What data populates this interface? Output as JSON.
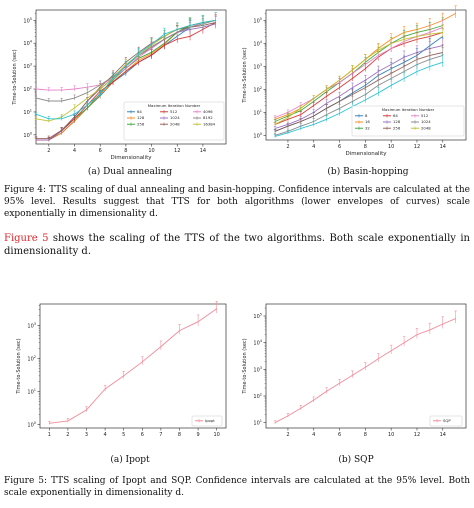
{
  "figure4": {
    "caption": "Figure 4:  TTS scaling of dual annealing and basin-hopping.  Confidence intervals are calculated at the 95% level.  Results suggest that TTS for both algorithms (lower envelopes of curves) scale exponentially in dimensionality d.",
    "panel_a_label": "(a) Dual annealing",
    "panel_b_label": "(b) Basin-hopping"
  },
  "body_text": {
    "ref": "Figure 5",
    "text": " shows the scaling of the TTS of the two algorithms.  Both scale exponentially in dimensionality d."
  },
  "figure5": {
    "caption": "Figure 5:  TTS scaling of Ipopt and SQP. Confidence intervals are calculated at the 95% level.  Both scale exponentially in dimensionality d.",
    "panel_a_label": "(a) Ipopt",
    "panel_b_label": "(b) SQP"
  },
  "chart_data": [
    {
      "id": "dual",
      "type": "line",
      "xlabel": "Dimensionality",
      "ylabel": "Time-to-Solution (sec)",
      "xticks": [
        2,
        4,
        6,
        8,
        10,
        12,
        14
      ],
      "yticks": [
        "10^0",
        "10^1",
        "10^2",
        "10^3",
        "10^4",
        "10^5"
      ],
      "xlim": [
        1,
        15.8
      ],
      "ylim_log10": [
        -0.4,
        5.45
      ],
      "legend": {
        "title": "Maximum Iteration Number",
        "position": "lower-right",
        "ncol": 3
      },
      "series": [
        {
          "name": "64",
          "color": "#1f77b4",
          "x": [
            1,
            2,
            3,
            4,
            5,
            6,
            7,
            8,
            9,
            10,
            11,
            12,
            13
          ],
          "y": [
            0.6,
            0.6,
            1.2,
            4,
            15,
            50,
            200,
            500,
            1500,
            3000,
            8000,
            20000,
            50000
          ]
        },
        {
          "name": "128",
          "color": "#ff7f0e",
          "x": [
            1,
            2,
            3,
            4,
            5,
            6,
            7,
            8,
            9,
            10,
            11,
            12,
            13
          ],
          "y": [
            0.6,
            0.6,
            1.2,
            4,
            15,
            55,
            210,
            600,
            1800,
            3500,
            9000,
            30000,
            60000
          ]
        },
        {
          "name": "256",
          "color": "#2ca02c",
          "x": [
            1,
            2,
            3,
            4,
            5,
            6,
            7,
            8,
            9,
            10,
            11,
            12,
            13
          ],
          "y": [
            0.6,
            0.6,
            1.5,
            5,
            15,
            65,
            250,
            800,
            2200,
            4000,
            10000,
            30000,
            60000
          ]
        },
        {
          "name": "512",
          "color": "#d62728",
          "x": [
            1,
            2,
            3,
            4,
            5,
            6,
            7,
            8,
            9,
            10,
            11,
            12,
            13,
            14,
            15
          ],
          "y": [
            0.6,
            0.6,
            1.5,
            5,
            20,
            80,
            200,
            600,
            1500,
            3000,
            8000,
            15000,
            20000,
            40000,
            80000
          ]
        },
        {
          "name": "1024",
          "color": "#9467bd",
          "x": [
            1,
            2,
            3,
            4,
            5,
            6,
            7,
            8,
            9,
            10,
            11,
            12,
            13,
            14,
            15
          ],
          "y": [
            0.6,
            0.6,
            1.5,
            6,
            30,
            100,
            300,
            1000,
            3000,
            6000,
            15000,
            30000,
            40000,
            50000,
            70000
          ]
        },
        {
          "name": "2048",
          "color": "#8c564b",
          "x": [
            1,
            2,
            3,
            4,
            5,
            6,
            7,
            8,
            9,
            10,
            11,
            12,
            13,
            14,
            15
          ],
          "y": [
            0.7,
            0.7,
            1.6,
            6,
            30,
            120,
            400,
            1500,
            4000,
            10000,
            20000,
            40000,
            50000,
            60000,
            80000
          ]
        },
        {
          "name": "4096",
          "color": "#e377c2",
          "x": [
            1,
            2,
            3,
            4,
            5,
            6,
            7,
            8,
            9,
            10,
            11,
            12,
            13,
            14,
            15
          ],
          "y": [
            100,
            90,
            90,
            100,
            120,
            150,
            300,
            800,
            2500,
            6000,
            15000,
            30000,
            50000,
            80000,
            100000
          ]
        },
        {
          "name": "8192",
          "color": "#7f7f7f",
          "x": [
            1,
            2,
            3,
            4,
            5,
            6,
            7,
            8,
            9,
            10,
            11,
            12,
            13,
            14,
            15
          ],
          "y": [
            40,
            30,
            30,
            40,
            70,
            150,
            350,
            1000,
            3000,
            7000,
            15000,
            30000,
            50000,
            70000,
            100000
          ]
        },
        {
          "name": "16384",
          "color": "#bcbd22",
          "x": [
            1,
            2,
            3,
            4,
            5,
            6,
            7,
            8,
            9,
            10,
            11,
            12,
            13,
            14,
            15
          ],
          "y": [
            5,
            4,
            6,
            15,
            40,
            100,
            300,
            1200,
            3000,
            8000,
            20000,
            40000,
            60000,
            80000,
            100000
          ]
        },
        {
          "name": "",
          "color": "#17becf",
          "x": [
            1,
            2,
            3,
            4,
            5,
            6,
            7,
            8,
            9,
            10,
            11,
            12,
            13,
            14,
            15
          ],
          "y": [
            8,
            5,
            5,
            8,
            20,
            60,
            300,
            1000,
            3500,
            9000,
            25000,
            40000,
            60000,
            80000,
            100000
          ]
        }
      ]
    },
    {
      "id": "basin",
      "type": "line",
      "xlabel": "Dimensionality",
      "ylabel": "Time-to-Solution (sec)",
      "xticks": [
        2,
        4,
        6,
        8,
        10,
        12,
        14
      ],
      "yticks": [
        "10^0",
        "10^1",
        "10^2",
        "10^3",
        "10^4",
        "10^5"
      ],
      "xlim": [
        0.3,
        15.8
      ],
      "ylim_log10": [
        -0.2,
        5.45
      ],
      "legend": {
        "title": "Maximum Iteration Number",
        "position": "lower-right",
        "ncol": 4
      },
      "series": [
        {
          "name": "8",
          "color": "#1f77b4",
          "x": [
            1,
            2,
            3,
            4,
            5,
            6,
            7,
            8,
            9,
            10,
            11,
            12,
            13,
            14
          ],
          "y": [
            1.5,
            2.5,
            4,
            7,
            15,
            30,
            70,
            150,
            400,
            800,
            1500,
            3000,
            8000,
            20000
          ]
        },
        {
          "name": "16",
          "color": "#ff7f0e",
          "x": [
            1,
            2,
            3,
            4,
            5,
            6,
            7,
            8,
            9,
            10,
            11,
            12,
            13,
            14,
            15
          ],
          "y": [
            5,
            8,
            15,
            40,
            100,
            250,
            700,
            2000,
            6000,
            15000,
            30000,
            40000,
            60000,
            100000,
            200000
          ]
        },
        {
          "name": "32",
          "color": "#2ca02c",
          "x": [
            1,
            2,
            3,
            4,
            5,
            6,
            7,
            8,
            9,
            10,
            11,
            12,
            13,
            14
          ],
          "y": [
            4,
            7,
            12,
            30,
            80,
            200,
            500,
            1500,
            4000,
            10000,
            20000,
            30000,
            40000,
            60000
          ]
        },
        {
          "name": "64",
          "color": "#d62728",
          "x": [
            1,
            2,
            3,
            4,
            5,
            6,
            7,
            8,
            9,
            10,
            11,
            12,
            13,
            14
          ],
          "y": [
            3,
            5,
            8,
            20,
            50,
            120,
            300,
            800,
            2500,
            6000,
            10000,
            15000,
            20000,
            30000
          ]
        },
        {
          "name": "128",
          "color": "#9467bd",
          "x": [
            1,
            2,
            3,
            4,
            5,
            6,
            7,
            8,
            9,
            10,
            11,
            12,
            13,
            14
          ],
          "y": [
            2,
            3,
            5,
            10,
            25,
            50,
            120,
            250,
            600,
            1200,
            2500,
            4000,
            6000,
            8000
          ]
        },
        {
          "name": "256",
          "color": "#8c564b",
          "x": [
            1,
            2,
            3,
            4,
            5,
            6,
            7,
            8,
            9,
            10,
            11,
            12,
            13,
            14
          ],
          "y": [
            1.5,
            2.5,
            4,
            7,
            15,
            30,
            60,
            120,
            250,
            500,
            1000,
            2000,
            3000,
            4000
          ]
        },
        {
          "name": "512",
          "color": "#e377c2",
          "x": [
            1,
            2,
            3,
            4,
            5,
            6,
            7,
            8,
            9,
            10,
            11,
            12,
            13,
            14
          ],
          "y": [
            6,
            10,
            20,
            40,
            100,
            200,
            500,
            1200,
            3000,
            6000,
            12000,
            20000,
            30000,
            50000
          ]
        },
        {
          "name": "1024",
          "color": "#7f7f7f",
          "x": [
            1,
            2,
            3,
            4,
            5,
            6,
            7,
            8,
            9,
            10,
            11,
            12,
            13,
            14
          ],
          "y": [
            1,
            1.5,
            2.5,
            4,
            8,
            15,
            30,
            60,
            150,
            300,
            600,
            1200,
            2000,
            3000
          ]
        },
        {
          "name": "2048",
          "color": "#bcbd22",
          "x": [
            1,
            2,
            3,
            4,
            5,
            6,
            7,
            8,
            9,
            10,
            11,
            12,
            13,
            14
          ],
          "y": [
            3,
            6,
            15,
            40,
            100,
            250,
            700,
            2000,
            5000,
            10000,
            15000,
            20000,
            25000,
            30000
          ]
        },
        {
          "name": "",
          "color": "#17becf",
          "x": [
            1,
            2,
            3,
            4,
            5,
            6,
            7,
            8,
            9,
            10,
            11,
            12,
            13,
            14
          ],
          "y": [
            0.9,
            1.3,
            2,
            3,
            5,
            9,
            18,
            35,
            70,
            150,
            300,
            600,
            1000,
            1500
          ]
        }
      ]
    },
    {
      "id": "ipopt",
      "type": "line",
      "xlabel": "",
      "ylabel": "Time-to-Solution (sec)",
      "xticks": [
        1,
        2,
        3,
        4,
        5,
        6,
        7,
        8,
        9,
        10
      ],
      "yticks": [
        "10^0",
        "10^1",
        "10^2",
        "10^3"
      ],
      "xlim": [
        0.5,
        10.5
      ],
      "ylim_log10": [
        -0.1,
        3.65
      ],
      "legend": {
        "title": "",
        "position": "lower-right",
        "ncol": 1
      },
      "series": [
        {
          "name": "Ipopt",
          "color": "#f08090",
          "x": [
            1,
            2,
            3,
            4,
            5,
            6,
            7,
            8,
            9,
            10
          ],
          "y": [
            1.1,
            1.3,
            2.8,
            12,
            30,
            80,
            230,
            700,
            1300,
            3200
          ]
        }
      ]
    },
    {
      "id": "sqp",
      "type": "line",
      "xlabel": "",
      "ylabel": "Time-to-Solution (sec)",
      "xticks": [
        2,
        4,
        6,
        8,
        10,
        12,
        14
      ],
      "yticks": [
        "10^1",
        "10^2",
        "10^3",
        "10^4",
        "10^5"
      ],
      "xlim": [
        0.3,
        15.8
      ],
      "ylim_log10": [
        0.8,
        5.45
      ],
      "legend": {
        "title": "",
        "position": "lower-right",
        "ncol": 1
      },
      "series": [
        {
          "name": "SQP",
          "color": "#f08090",
          "x": [
            1,
            2,
            3,
            4,
            5,
            6,
            7,
            8,
            9,
            10,
            11,
            12,
            13,
            14,
            15
          ],
          "y": [
            10,
            18,
            35,
            70,
            150,
            300,
            600,
            1200,
            2500,
            5000,
            10000,
            20000,
            30000,
            50000,
            80000
          ]
        }
      ]
    }
  ]
}
